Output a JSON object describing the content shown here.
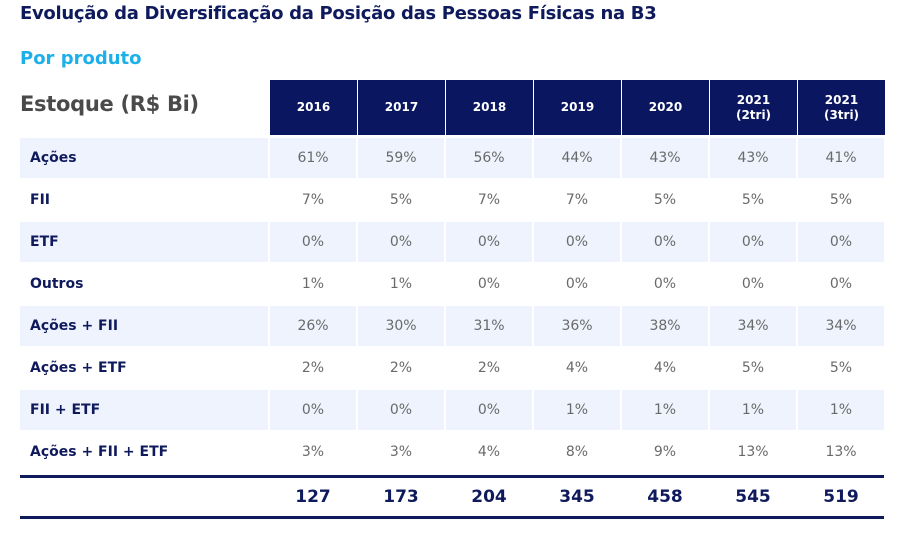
{
  "title": "Evolução da Diversificação da Posição das Pessoas Físicas na B3",
  "subtitle": "Por produto",
  "table": {
    "corner_label": "Estoque (R$ Bi)",
    "columns": [
      "2016",
      "2017",
      "2018",
      "2019",
      "2020",
      "2021\n(2tri)",
      "2021\n(3tri)"
    ],
    "rows": [
      {
        "label": "Ações",
        "values": [
          "61%",
          "59%",
          "56%",
          "44%",
          "43%",
          "43%",
          "41%"
        ]
      },
      {
        "label": "FII",
        "values": [
          "7%",
          "5%",
          "7%",
          "7%",
          "5%",
          "5%",
          "5%"
        ]
      },
      {
        "label": "ETF",
        "values": [
          "0%",
          "0%",
          "0%",
          "0%",
          "0%",
          "0%",
          "0%"
        ]
      },
      {
        "label": "Outros",
        "values": [
          "1%",
          "1%",
          "0%",
          "0%",
          "0%",
          "0%",
          "0%"
        ]
      },
      {
        "label": "Ações + FII",
        "values": [
          "26%",
          "30%",
          "31%",
          "36%",
          "38%",
          "34%",
          "34%"
        ]
      },
      {
        "label": "Ações + ETF",
        "values": [
          "2%",
          "2%",
          "2%",
          "4%",
          "4%",
          "5%",
          "5%"
        ]
      },
      {
        "label": "FII + ETF",
        "values": [
          "0%",
          "0%",
          "0%",
          "1%",
          "1%",
          "1%",
          "1%"
        ]
      },
      {
        "label": "Ações + FII + ETF",
        "values": [
          "3%",
          "3%",
          "4%",
          "8%",
          "9%",
          "13%",
          "13%"
        ]
      }
    ],
    "totals": [
      "127",
      "173",
      "204",
      "345",
      "458",
      "545",
      "519"
    ]
  },
  "colors": {
    "header_bg": "#0b1660",
    "title": "#0f1a5c",
    "subtitle": "#1cb0ea",
    "row_shade": "#eef3fd"
  }
}
